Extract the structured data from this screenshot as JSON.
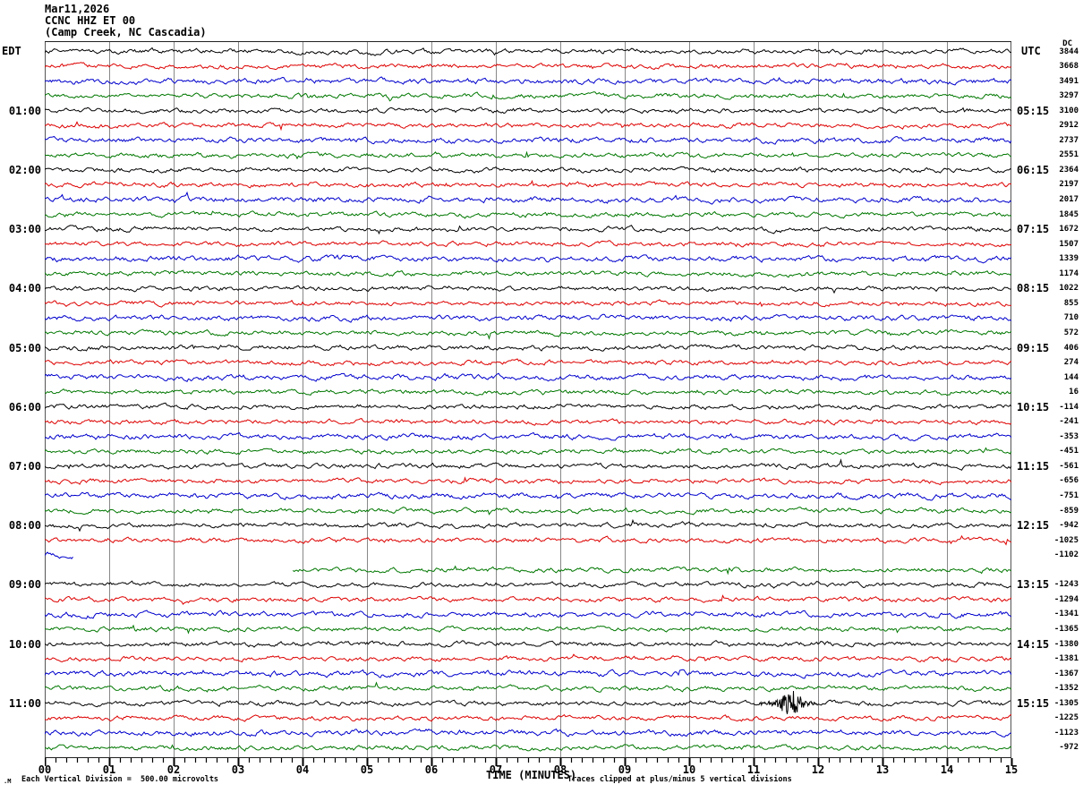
{
  "title": {
    "date": "Mar11,2026",
    "station": "CCNC HHZ ET 00",
    "location": "(Camp Creek, NC Cascadia)"
  },
  "chart_data": {
    "type": "line",
    "subtype": "seismogram-helicorder",
    "left_axis_header": "EDT",
    "right_axis_header": "UTC",
    "dc_header": "DC",
    "x_axis": {
      "label": "TIME (MINUTES)",
      "ticks": [
        "00",
        "01",
        "02",
        "03",
        "04",
        "05",
        "06",
        "07",
        "08",
        "09",
        "10",
        "11",
        "12",
        "13",
        "14",
        "15"
      ],
      "minutes_per_line": 15,
      "minor_ticks_per_minute": 6
    },
    "footer": {
      "glyph": ".M",
      "scale_note": "Each Vertical Division =  500.00 microvolts",
      "clip_note": "Traces clipped at plus/minus 5 vertical divisions"
    },
    "trace_colors": {
      "black": "#000000",
      "red": "#dd0000",
      "blue": "#0000cc",
      "green": "#007700"
    },
    "grid_color": "#888888",
    "frame_color": "#555555",
    "rows": [
      {
        "color": "black",
        "left": "",
        "utc": "",
        "dc": "3844"
      },
      {
        "color": "red",
        "left": "",
        "utc": "",
        "dc": "3668"
      },
      {
        "color": "blue",
        "left": "",
        "utc": "",
        "dc": "3491"
      },
      {
        "color": "green",
        "left": "",
        "utc": "",
        "dc": "3297",
        "spikes": [
          {
            "min": 5.35,
            "amp": -7
          }
        ]
      },
      {
        "color": "black",
        "left": "01:00",
        "utc": "05:15",
        "dc": "3100"
      },
      {
        "color": "red",
        "left": "",
        "utc": "",
        "dc": "2912"
      },
      {
        "color": "blue",
        "left": "",
        "utc": "",
        "dc": "2737"
      },
      {
        "color": "green",
        "left": "",
        "utc": "",
        "dc": "2551"
      },
      {
        "color": "black",
        "left": "02:00",
        "utc": "06:15",
        "dc": "2364"
      },
      {
        "color": "red",
        "left": "",
        "utc": "",
        "dc": "2197"
      },
      {
        "color": "blue",
        "left": "",
        "utc": "",
        "dc": "2017"
      },
      {
        "color": "green",
        "left": "",
        "utc": "",
        "dc": "1845"
      },
      {
        "color": "black",
        "left": "03:00",
        "utc": "07:15",
        "dc": "1672"
      },
      {
        "color": "red",
        "left": "",
        "utc": "",
        "dc": "1507"
      },
      {
        "color": "blue",
        "left": "",
        "utc": "",
        "dc": "1339"
      },
      {
        "color": "green",
        "left": "",
        "utc": "",
        "dc": "1174"
      },
      {
        "color": "black",
        "left": "04:00",
        "utc": "08:15",
        "dc": "1022"
      },
      {
        "color": "red",
        "left": "",
        "utc": "",
        "dc": "855"
      },
      {
        "color": "blue",
        "left": "",
        "utc": "",
        "dc": "710"
      },
      {
        "color": "green",
        "left": "",
        "utc": "",
        "dc": "572"
      },
      {
        "color": "black",
        "left": "05:00",
        "utc": "09:15",
        "dc": "406"
      },
      {
        "color": "red",
        "left": "",
        "utc": "",
        "dc": "274"
      },
      {
        "color": "blue",
        "left": "",
        "utc": "",
        "dc": "144"
      },
      {
        "color": "green",
        "left": "",
        "utc": "",
        "dc": "16"
      },
      {
        "color": "black",
        "left": "06:00",
        "utc": "10:15",
        "dc": "-114"
      },
      {
        "color": "red",
        "left": "",
        "utc": "",
        "dc": "-241"
      },
      {
        "color": "blue",
        "left": "",
        "utc": "",
        "dc": "-353"
      },
      {
        "color": "green",
        "left": "",
        "utc": "",
        "dc": "-451"
      },
      {
        "color": "black",
        "left": "07:00",
        "utc": "11:15",
        "dc": "-561"
      },
      {
        "color": "red",
        "left": "",
        "utc": "",
        "dc": "-656"
      },
      {
        "color": "blue",
        "left": "",
        "utc": "",
        "dc": "-751"
      },
      {
        "color": "green",
        "left": "",
        "utc": "",
        "dc": "-859"
      },
      {
        "color": "black",
        "left": "08:00",
        "utc": "12:15",
        "dc": "-942"
      },
      {
        "color": "red",
        "left": "",
        "utc": "",
        "dc": "-1025"
      },
      {
        "color": "blue",
        "left": "",
        "utc": "",
        "dc": "-1102",
        "segments": [
          [
            0,
            0.45
          ]
        ]
      },
      {
        "color": "green",
        "left": "",
        "utc": "",
        "dc": "",
        "segments": [
          [
            3.85,
            15
          ]
        ]
      },
      {
        "color": "black",
        "left": "09:00",
        "utc": "13:15",
        "dc": "-1243"
      },
      {
        "color": "red",
        "left": "",
        "utc": "",
        "dc": "-1294"
      },
      {
        "color": "blue",
        "left": "",
        "utc": "",
        "dc": "-1341"
      },
      {
        "color": "green",
        "left": "",
        "utc": "",
        "dc": "-1365"
      },
      {
        "color": "black",
        "left": "10:00",
        "utc": "14:15",
        "dc": "-1380"
      },
      {
        "color": "red",
        "left": "",
        "utc": "",
        "dc": "-1381"
      },
      {
        "color": "blue",
        "left": "",
        "utc": "",
        "dc": "-1367"
      },
      {
        "color": "green",
        "left": "",
        "utc": "",
        "dc": "-1352"
      },
      {
        "color": "black",
        "left": "11:00",
        "utc": "15:15",
        "dc": "-1305"
      },
      {
        "color": "red",
        "left": "",
        "utc": "",
        "dc": "-1225"
      },
      {
        "color": "blue",
        "left": "",
        "utc": "",
        "dc": "-1123"
      },
      {
        "color": "green",
        "left": "",
        "utc": "",
        "dc": "-972"
      }
    ],
    "event": {
      "row_index": 44,
      "start_min": 11.08,
      "peak_min": 11.62,
      "end_min": 12.0,
      "description": "seismic event burst on 11:00 EDT / 15:15 UTC trace"
    },
    "data_gap": {
      "gap_end_row": 34,
      "gap_end_min": 0.45,
      "resume_row": 35,
      "resume_min": 3.85
    }
  }
}
